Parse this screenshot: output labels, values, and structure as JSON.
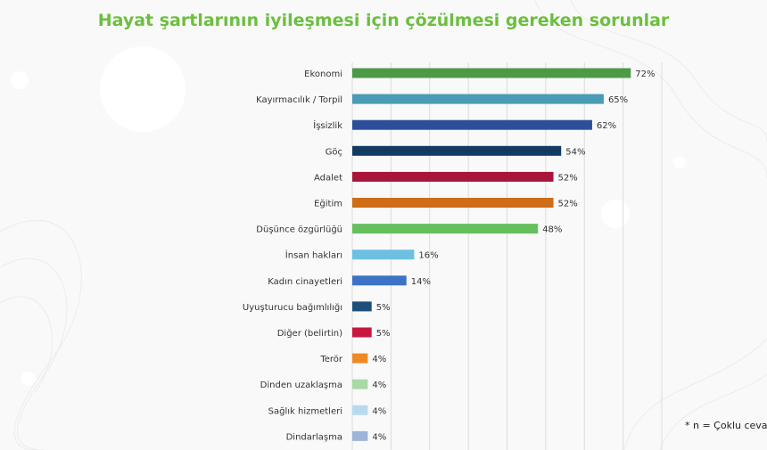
{
  "title": "Hayat şartlarının iyileşmesi için çözülmesi gereken sorunlar",
  "footnote": "* n = Çoklu cevap",
  "chart_data": {
    "type": "bar",
    "orientation": "horizontal",
    "title": "Hayat şartlarının iyileşmesi için çözülmesi gereken sorunlar",
    "xlabel": "",
    "ylabel": "",
    "xlim": [
      0,
      80
    ],
    "grid": true,
    "value_suffix": "%",
    "categories": [
      "Ekonomi",
      "Kayırmacılık / Torpil",
      "İşsizlik",
      "Göç",
      "Adalet",
      "Eğitim",
      "Düşünce özgürlüğü",
      "İnsan hakları",
      "Kadın cinayetleri",
      "Uyuşturucu bağımlılığı",
      "Diğer (belirtin)",
      "Terör",
      "Dinden uzaklaşma",
      "Sağlık hizmetleri",
      "Dindarlaşma"
    ],
    "values": [
      72,
      65,
      62,
      54,
      52,
      52,
      48,
      16,
      14,
      5,
      5,
      4,
      4,
      4,
      4
    ],
    "colors": [
      "#4c9a46",
      "#4a9bb6",
      "#2d4f9a",
      "#123b63",
      "#a8153a",
      "#cf6c17",
      "#66bf5e",
      "#6ec0e0",
      "#3c73c4",
      "#1c4f7c",
      "#c8183f",
      "#ee8a24",
      "#a9d9a5",
      "#b7daef",
      "#9eb4d8"
    ]
  }
}
